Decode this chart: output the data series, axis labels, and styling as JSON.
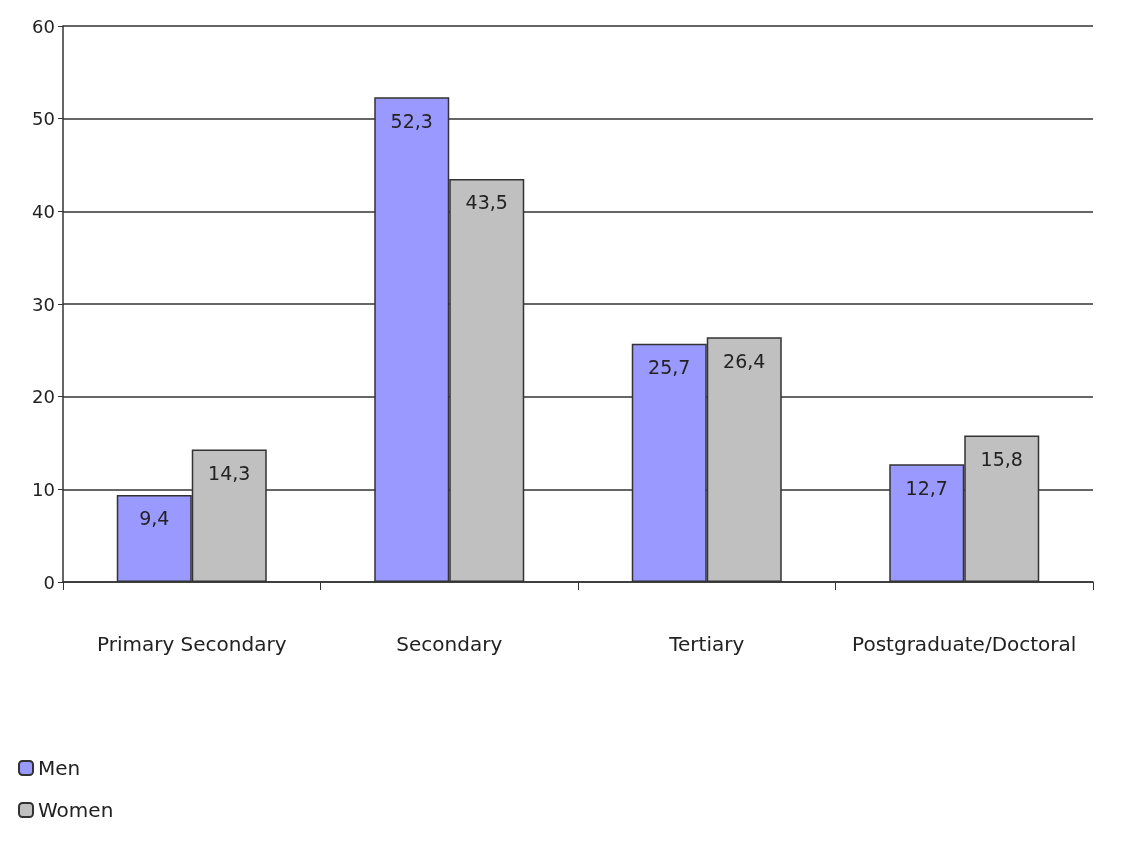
{
  "chart_data": {
    "type": "bar",
    "categories": [
      "Primary Secondary",
      "Secondary",
      "Tertiary",
      "Postgraduate/Doctoral"
    ],
    "series": [
      {
        "name": "Men",
        "color": "#9999ff",
        "values": [
          9.4,
          52.3,
          25.7,
          12.7
        ],
        "value_labels": [
          "9,4",
          "52,3",
          "25,7",
          "12,7"
        ]
      },
      {
        "name": "Women",
        "color": "#c0c0c0",
        "values": [
          14.3,
          43.5,
          26.4,
          15.8
        ],
        "value_labels": [
          "14,3",
          "43,5",
          "26,4",
          "15,8"
        ]
      }
    ],
    "ylim": [
      0,
      60
    ],
    "yticks": [
      0,
      10,
      20,
      30,
      40,
      50,
      60
    ],
    "grid": "y",
    "legend": "bottom left"
  }
}
